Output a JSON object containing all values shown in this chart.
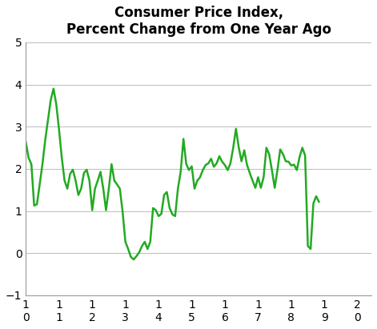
{
  "title": "Consumer Price Index,\nPercent Change from One Year Ago",
  "line_color": "#22aa22",
  "line_width": 1.8,
  "background_color": "#ffffff",
  "ylim": [
    -1,
    5
  ],
  "yticks": [
    -1,
    0,
    1,
    2,
    3,
    4,
    5
  ],
  "x_tick_labels": [
    "1\n0",
    "1\n1",
    "1\n2",
    "1\n3",
    "1\n4",
    "1\n5",
    "1\n6",
    "1\n7",
    "1\n8",
    "1\n9",
    "2\n0"
  ],
  "x_tick_positions": [
    0,
    12,
    24,
    36,
    48,
    60,
    72,
    84,
    96,
    108,
    120
  ],
  "xlim": [
    0,
    125
  ],
  "y_values": [
    2.63,
    2.26,
    2.11,
    1.13,
    1.16,
    1.63,
    2.11,
    2.68,
    3.16,
    3.63,
    3.9,
    3.53,
    2.93,
    2.26,
    1.72,
    1.53,
    1.88,
    1.98,
    1.72,
    1.38,
    1.53,
    1.9,
    1.98,
    1.72,
    1.02,
    1.53,
    1.72,
    1.93,
    1.53,
    1.02,
    1.53,
    2.11,
    1.72,
    1.63,
    1.53,
    0.98,
    0.27,
    0.1,
    -0.09,
    -0.15,
    -0.07,
    0.02,
    0.17,
    0.27,
    0.1,
    0.27,
    1.07,
    1.02,
    0.88,
    0.93,
    1.38,
    1.45,
    1.07,
    0.92,
    0.88,
    1.53,
    1.93,
    2.71,
    2.12,
    1.97,
    2.06,
    1.53,
    1.72,
    1.8,
    1.97,
    2.09,
    2.13,
    2.24,
    2.05,
    2.13,
    2.3,
    2.17,
    2.09,
    1.97,
    2.13,
    2.5,
    2.95,
    2.51,
    2.18,
    2.44,
    2.09,
    1.9,
    1.72,
    1.55,
    1.8,
    1.55,
    1.8,
    2.5,
    2.35,
    1.97,
    1.55,
    1.97,
    2.46,
    2.35,
    2.18,
    2.17,
    2.08,
    2.1,
    1.97,
    2.28,
    2.5,
    2.32,
    0.17,
    0.1,
    1.18,
    1.35,
    1.22
  ],
  "title_fontsize": 12,
  "tick_fontsize": 10,
  "grid_color": "#bbbbbb",
  "spine_color": "#999999"
}
